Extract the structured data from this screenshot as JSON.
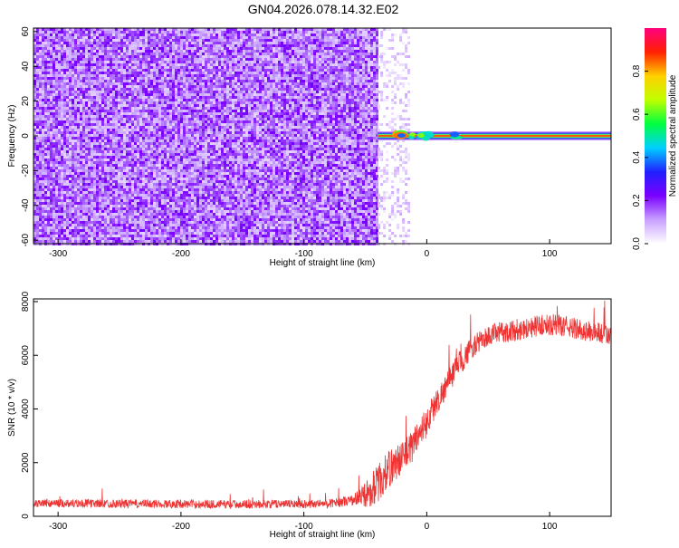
{
  "title": "GN04.2026.078.14.32.E02",
  "chart_data": [
    {
      "type": "heatmap",
      "xlabel": "Height of straight line (km)",
      "ylabel": "Frequency (Hz)",
      "xlim": [
        -320,
        150
      ],
      "ylim": [
        -62,
        62
      ],
      "xticks": [
        -300,
        -200,
        -100,
        0,
        100
      ],
      "yticks": [
        -60,
        -40,
        -20,
        0,
        20,
        40,
        60
      ],
      "colorbar": {
        "label": "Normalized spectral amplitude",
        "range": [
          0,
          1
        ],
        "ticks": [
          "0.0",
          "0.2",
          "0.4",
          "0.6",
          "0.8"
        ],
        "tick_values": [
          0,
          0.2,
          0.4,
          0.6,
          0.8
        ],
        "colors": [
          "#ffffff",
          "#c8a0ff",
          "#7a00ff",
          "#2020ff",
          "#00d0ff",
          "#00ff40",
          "#c0ff00",
          "#ffd000",
          "#ff2000",
          "#ff0080"
        ]
      },
      "noise_region": {
        "x_start": -320,
        "x_end": -40,
        "amplitude": 0.15
      },
      "transition_region": {
        "x_start": -40,
        "x_end": -15,
        "amplitude": 0.05
      },
      "carrier": {
        "frequency": 0,
        "x_start": -40,
        "x_end": 150,
        "bandwidth": 2,
        "peak_amplitude": 0.9
      }
    },
    {
      "type": "line",
      "xlabel": "Height of straight line (km)",
      "ylabel": "SNR (10 * v/v)",
      "xlim": [
        -320,
        150
      ],
      "ylim": [
        0,
        8100
      ],
      "xticks": [
        -300,
        -200,
        -100,
        0,
        100
      ],
      "yticks": [
        0,
        2000,
        4000,
        6000,
        8000
      ],
      "color": "#ee3333",
      "series": [
        {
          "x": [
            -320,
            -280,
            -240,
            -200,
            -160,
            -120,
            -80,
            -60,
            -50,
            -45,
            -40,
            -35,
            -30,
            -25,
            -20,
            -15,
            -10,
            -5,
            0,
            5,
            10,
            15,
            20,
            25,
            30,
            35,
            40,
            45,
            50,
            55,
            60,
            70,
            80,
            90,
            100,
            110,
            120,
            130,
            140,
            150
          ],
          "y": [
            500,
            480,
            470,
            460,
            450,
            460,
            470,
            600,
            800,
            1000,
            1200,
            1500,
            1800,
            2000,
            2200,
            2400,
            2800,
            3200,
            3500,
            4000,
            4400,
            4800,
            5200,
            5600,
            5900,
            6200,
            6400,
            6600,
            6700,
            6800,
            6850,
            6900,
            7000,
            7100,
            7150,
            7100,
            7000,
            6900,
            6850,
            6700
          ],
          "noise": [
            200,
            200,
            200,
            200,
            200,
            200,
            200,
            250,
            600,
            800,
            900,
            900,
            900,
            800,
            800,
            800,
            800,
            700,
            700,
            700,
            600,
            600,
            600,
            600,
            600,
            500,
            500,
            500,
            500,
            500,
            500,
            500,
            500,
            500,
            500,
            500,
            500,
            500,
            500,
            500
          ]
        }
      ]
    }
  ]
}
